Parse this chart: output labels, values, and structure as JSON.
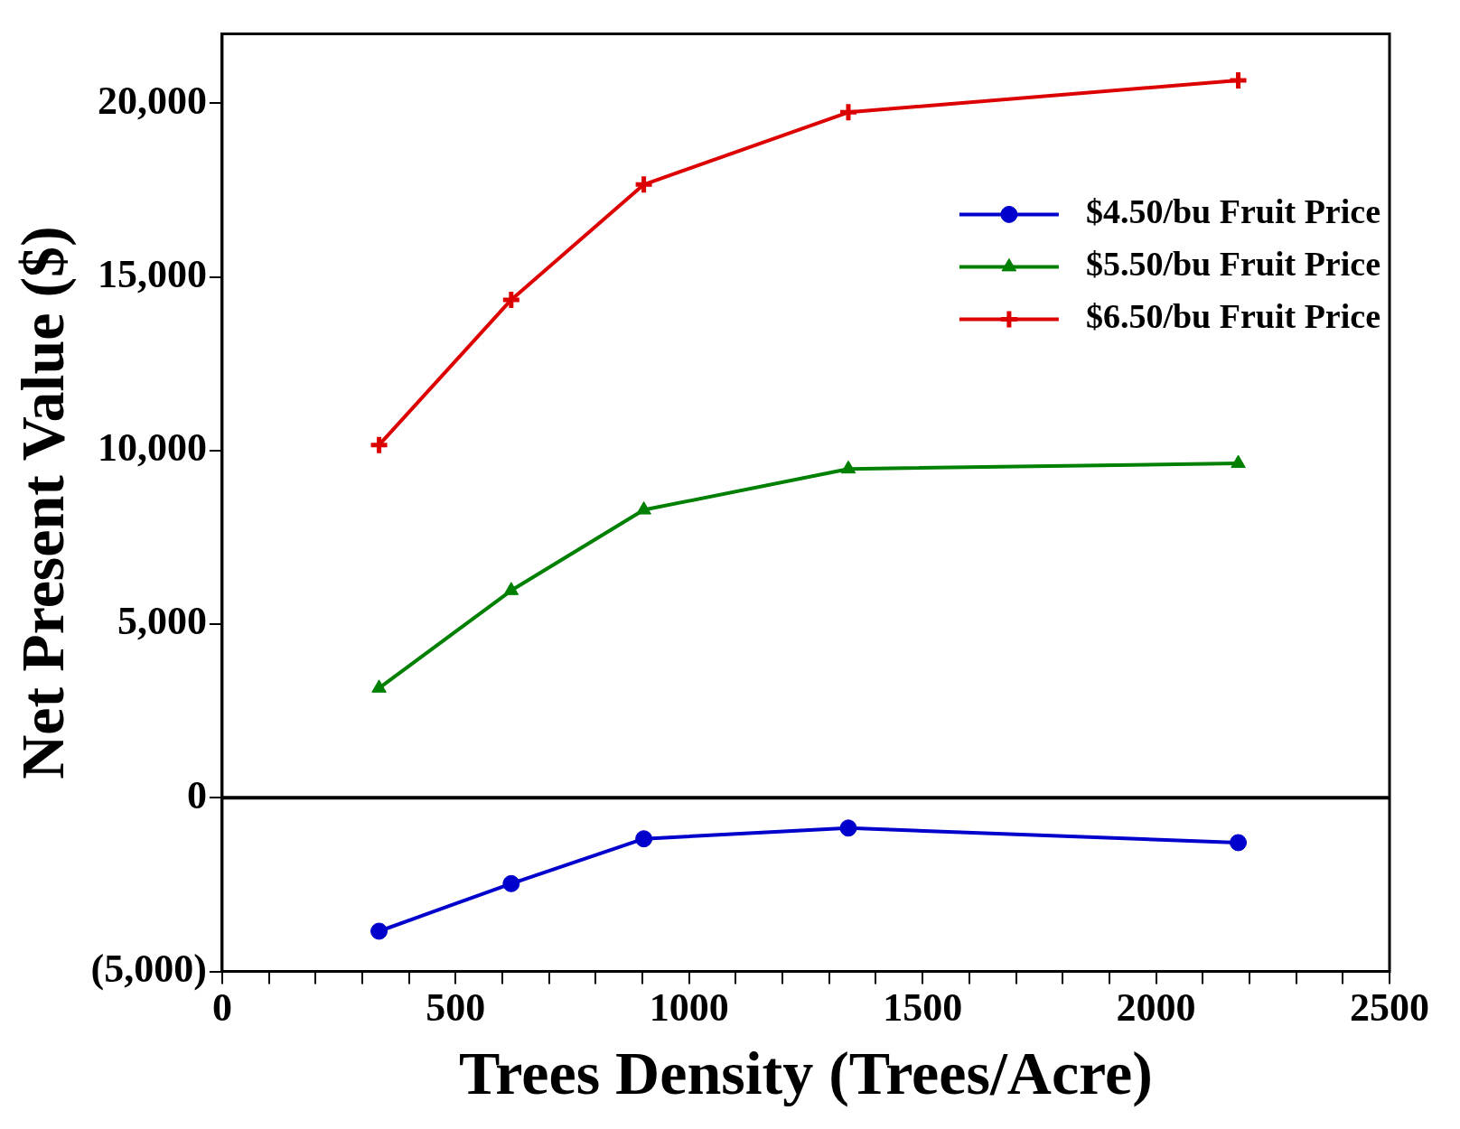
{
  "chart_data": {
    "type": "line",
    "xlabel": "Trees Density (Trees/Acre)",
    "ylabel": "Net Present Value ($)",
    "xlim": [
      0,
      2500
    ],
    "xticks": [
      0,
      {
        "value": 100,
        "label": null
      },
      {
        "value": 200,
        "label": null
      },
      {
        "value": 300,
        "label": null
      },
      {
        "value": 400,
        "label": null
      },
      500,
      {
        "value": 600,
        "label": null
      },
      {
        "value": 700,
        "label": null
      },
      {
        "value": 800,
        "label": null
      },
      {
        "value": 900,
        "label": null
      },
      1000,
      {
        "value": 1100,
        "label": null
      },
      {
        "value": 1200,
        "label": null
      },
      {
        "value": 1300,
        "label": null
      },
      {
        "value": 1400,
        "label": null
      },
      1500,
      {
        "value": 1600,
        "label": null
      },
      {
        "value": 1700,
        "label": null
      },
      {
        "value": 1800,
        "label": null
      },
      {
        "value": 1900,
        "label": null
      },
      2000,
      {
        "value": 2100,
        "label": null
      },
      {
        "value": 2200,
        "label": null
      },
      {
        "value": 2300,
        "label": null
      },
      {
        "value": 2400,
        "label": null
      },
      2500
    ],
    "ylim": [
      -5000,
      22000
    ],
    "yticks": [
      {
        "value": -5000,
        "label": "(5,000)"
      },
      0,
      {
        "value": 5000,
        "label": "5,000"
      },
      {
        "value": 10000,
        "label": "10,000"
      },
      {
        "value": 15000,
        "label": "15,000"
      },
      {
        "value": 20000,
        "label": "20,000"
      }
    ],
    "x": [
      336,
      619,
      903,
      1341,
      2176
    ],
    "series": [
      {
        "name": "$4.50/bu Fruit Price",
        "color": "#0000cc",
        "marker": "circle",
        "values": [
          -3840,
          -2470,
          -1180,
          -870,
          -1290
        ]
      },
      {
        "name": "$5.50/bu Fruit Price",
        "color": "#008000",
        "marker": "triangle",
        "values": [
          3160,
          5970,
          8290,
          9470,
          9630
        ]
      },
      {
        "name": "$6.50/bu Fruit Price",
        "color": "#dd0000",
        "marker": "cross",
        "values": [
          10160,
          14340,
          17660,
          19740,
          20660
        ]
      }
    ],
    "ref_lines": [
      {
        "axis": "y",
        "value": 0,
        "color": "#000000"
      }
    ],
    "grid": false,
    "legend": "top right",
    "line_style": "solid"
  }
}
